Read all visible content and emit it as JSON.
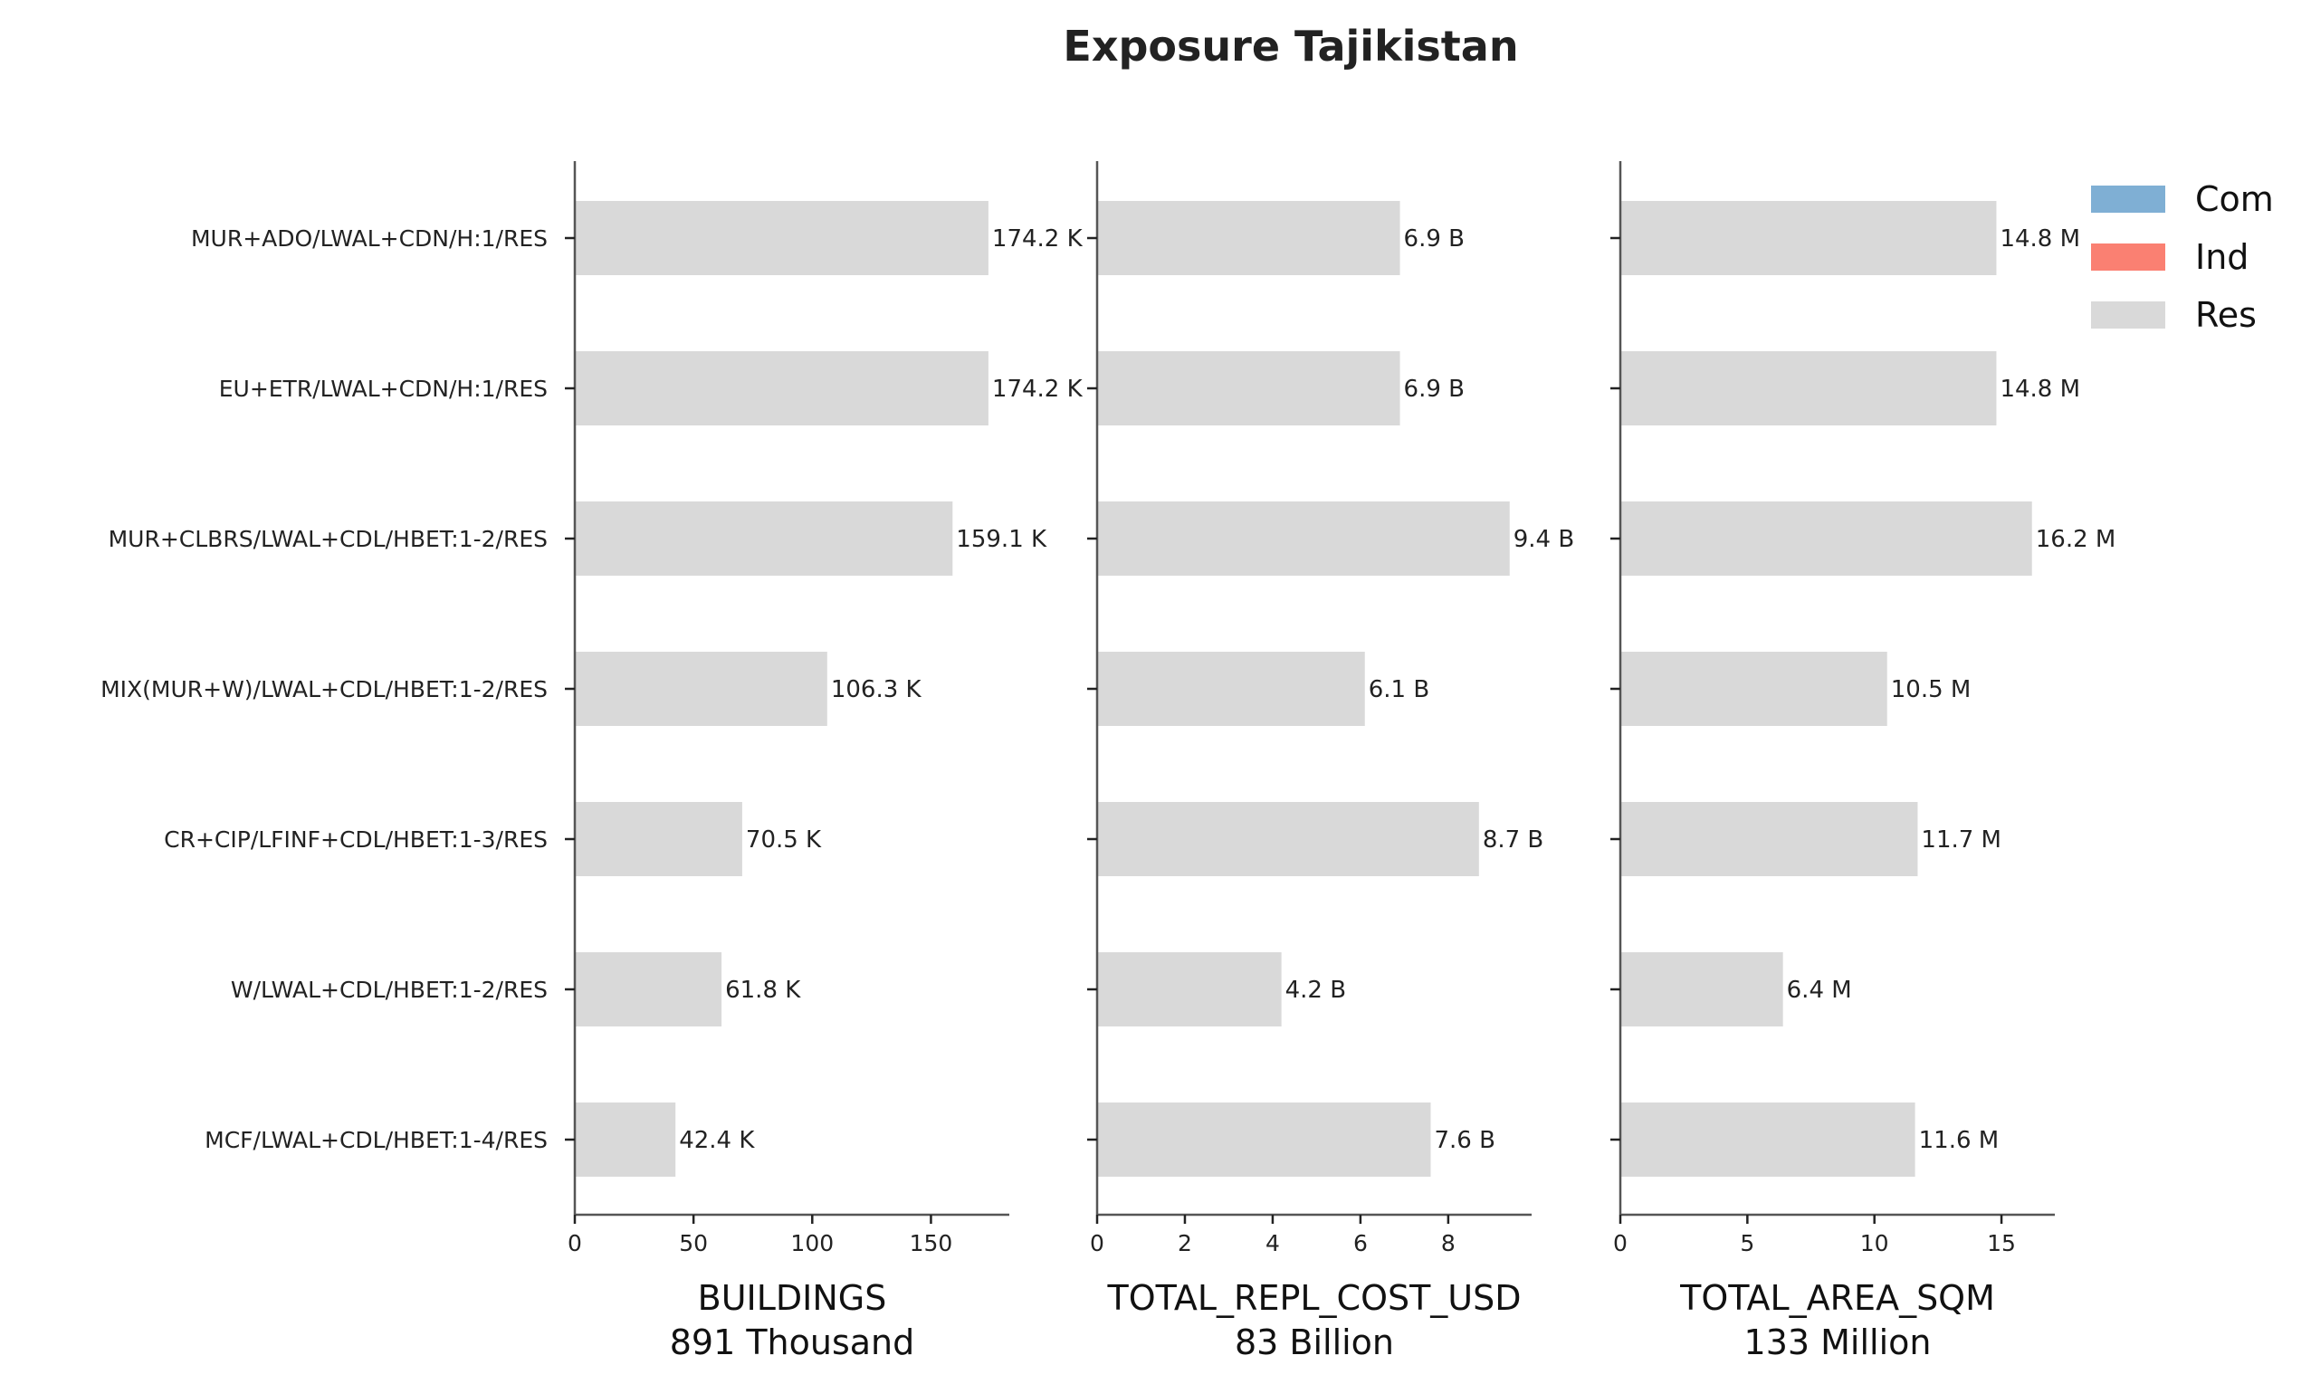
{
  "chart_data": {
    "type": "bar",
    "orientation": "horizontal",
    "title": "Exposure Tajikistan",
    "categories": [
      "MUR+ADO/LWAL+CDN/H:1/RES",
      "EU+ETR/LWAL+CDN/H:1/RES",
      "MUR+CLBRS/LWAL+CDL/HBET:1-2/RES",
      "MIX(MUR+W)/LWAL+CDL/HBET:1-2/RES",
      "CR+CIP/LFINF+CDL/HBET:1-3/RES",
      "W/LWAL+CDL/HBET:1-2/RES",
      "MCF/LWAL+CDL/HBET:1-4/RES"
    ],
    "legend": {
      "placement": "top-right",
      "entries": [
        {
          "name": "Com",
          "color": "#7fafd4"
        },
        {
          "name": "Ind",
          "color": "#fa8072"
        },
        {
          "name": "Res",
          "color": "#d9d9d9"
        }
      ]
    },
    "panels": [
      {
        "xlabel": "BUILDINGS",
        "total": "891 Thousand",
        "xlim": [
          0,
          183
        ],
        "ticks": [
          0,
          50,
          100,
          150
        ],
        "values": [
          174.2,
          174.2,
          159.1,
          106.3,
          70.5,
          61.8,
          42.4
        ],
        "labels": [
          "174.2 K",
          "174.2 K",
          "159.1 K",
          "106.3 K",
          "70.5 K",
          "61.8 K",
          "42.4 K"
        ],
        "series": "Res"
      },
      {
        "xlabel": "TOTAL_REPL_COST_USD",
        "total": "83 Billion",
        "xlim": [
          0,
          9.9
        ],
        "ticks": [
          0,
          2,
          4,
          6,
          8
        ],
        "values": [
          6.9,
          6.9,
          9.4,
          6.1,
          8.7,
          4.2,
          7.6
        ],
        "labels": [
          "6.9 B",
          "6.9 B",
          "9.4 B",
          "6.1 B",
          "8.7 B",
          "4.2 B",
          "7.6 B"
        ],
        "series": "Res"
      },
      {
        "xlabel": "TOTAL_AREA_SQM",
        "total": "133 Million",
        "xlim": [
          0,
          17.1
        ],
        "ticks": [
          0,
          5,
          10,
          15
        ],
        "values": [
          14.8,
          14.8,
          16.2,
          10.5,
          11.7,
          6.4,
          11.6
        ],
        "labels": [
          "14.8 M",
          "14.8 M",
          "16.2 M",
          "10.5 M",
          "11.7 M",
          "6.4 M",
          "11.6 M"
        ],
        "series": "Res"
      }
    ]
  }
}
